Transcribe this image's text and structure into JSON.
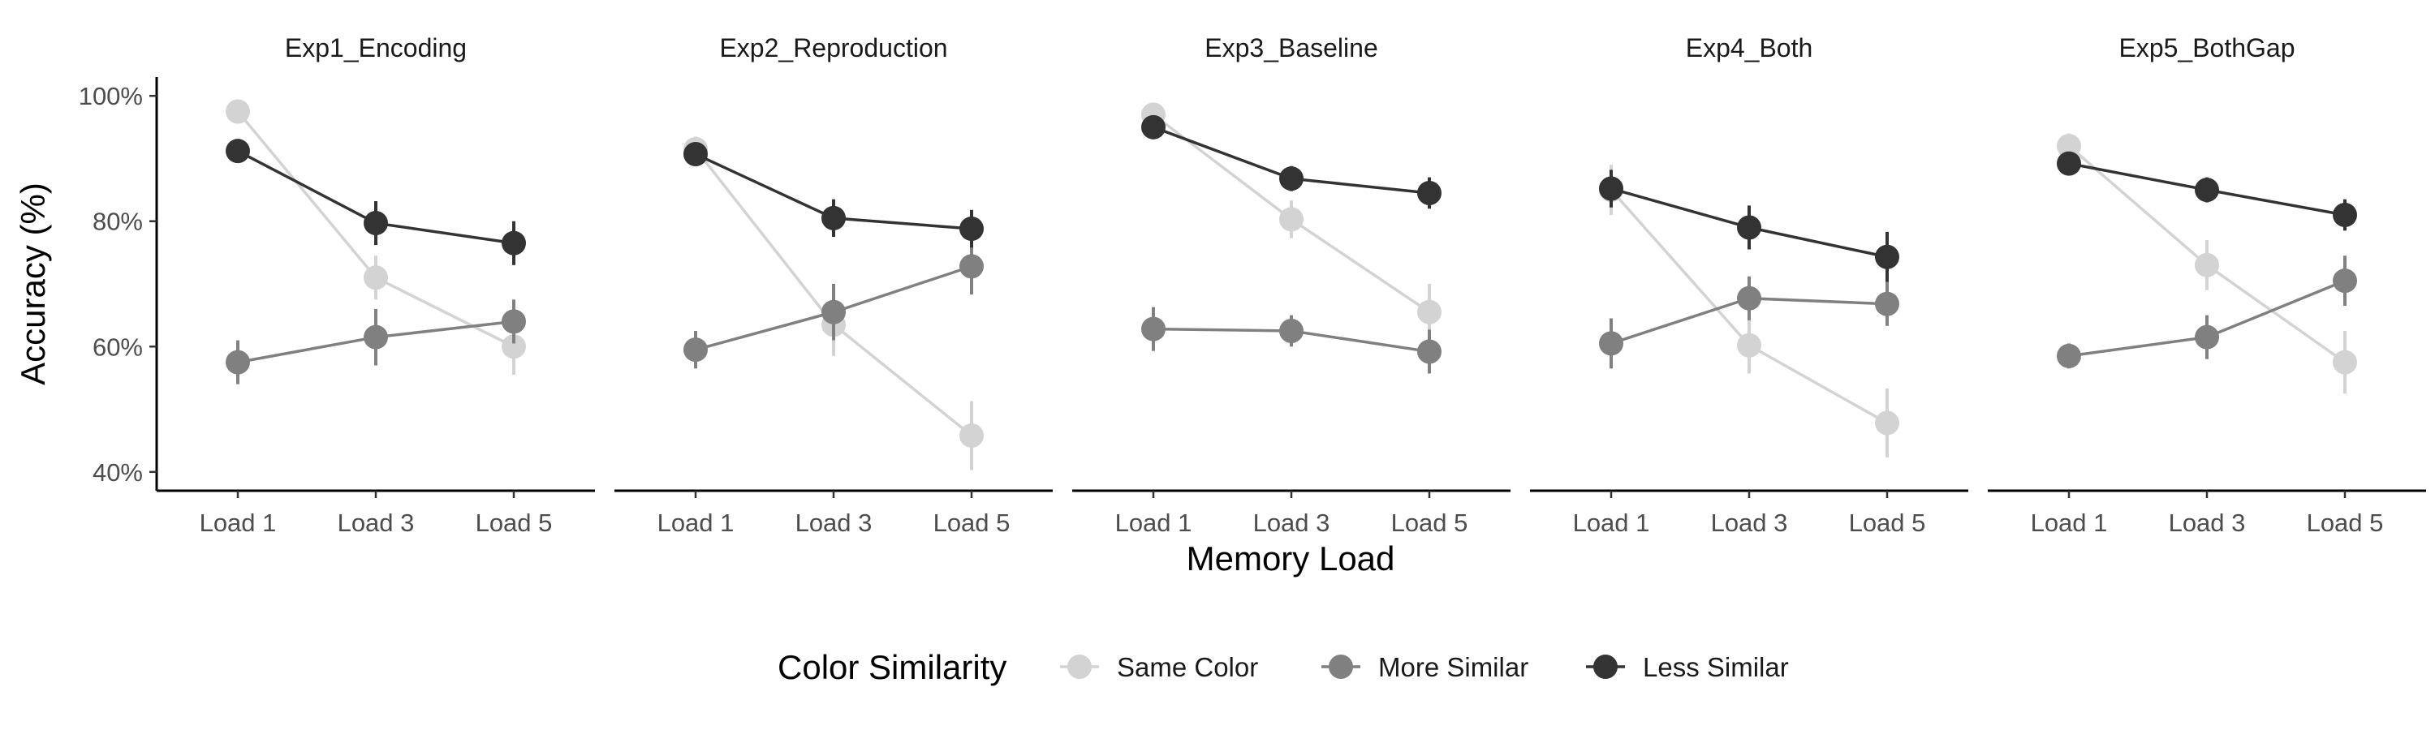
{
  "chart_data": {
    "type": "line",
    "facet_variable": "experiment",
    "x_axis_label": "Memory Load",
    "y_axis_label": "Accuracy (%)",
    "categories": [
      "Load 1",
      "Load 3",
      "Load 5"
    ],
    "y_range": [
      37,
      103
    ],
    "y_ticks": [
      40,
      60,
      80,
      100
    ],
    "y_tick_labels": [
      "40%",
      "60%",
      "80%",
      "100%"
    ],
    "grid": false,
    "error_bars": true,
    "legend": {
      "title": "Color Similarity",
      "placement": "bottom",
      "entries": [
        "Same Color",
        "More Similar",
        "Less Similar"
      ]
    },
    "series_colors": {
      "Same Color": "#d3d3d3",
      "More Similar": "#808080",
      "Less Similar": "#333333"
    },
    "panels": [
      {
        "title": "Exp1_Encoding",
        "series": [
          {
            "name": "Same Color",
            "values": [
              97.5,
              71.0,
              60.0
            ],
            "errors": [
              1.0,
              3.5,
              4.5
            ]
          },
          {
            "name": "More Similar",
            "values": [
              57.5,
              61.5,
              64.0
            ],
            "errors": [
              3.5,
              4.5,
              3.5
            ]
          },
          {
            "name": "Less Similar",
            "values": [
              91.2,
              79.7,
              76.5
            ],
            "errors": [
              1.5,
              3.5,
              3.5
            ]
          }
        ]
      },
      {
        "title": "Exp2_Reproduction",
        "series": [
          {
            "name": "Same Color",
            "values": [
              91.5,
              63.5,
              45.8
            ],
            "errors": [
              2.0,
              5.0,
              5.5
            ]
          },
          {
            "name": "More Similar",
            "values": [
              59.5,
              65.5,
              72.8
            ],
            "errors": [
              3.0,
              4.5,
              4.5
            ]
          },
          {
            "name": "Less Similar",
            "values": [
              90.7,
              80.5,
              78.8
            ],
            "errors": [
              1.5,
              3.0,
              3.0
            ]
          }
        ]
      },
      {
        "title": "Exp3_Baseline",
        "series": [
          {
            "name": "Same Color",
            "values": [
              97.0,
              80.3,
              65.5
            ],
            "errors": [
              1.0,
              3.0,
              4.5
            ]
          },
          {
            "name": "More Similar",
            "values": [
              62.8,
              62.5,
              59.2
            ],
            "errors": [
              3.5,
              2.5,
              3.5
            ]
          },
          {
            "name": "Less Similar",
            "values": [
              95.0,
              86.8,
              84.5
            ],
            "errors": [
              1.0,
              2.0,
              2.5
            ]
          }
        ]
      },
      {
        "title": "Exp4_Both",
        "series": [
          {
            "name": "Same Color",
            "values": [
              85.0,
              60.2,
              47.8
            ],
            "errors": [
              4.0,
              4.5,
              5.5
            ]
          },
          {
            "name": "More Similar",
            "values": [
              60.5,
              67.7,
              66.8
            ],
            "errors": [
              4.0,
              3.5,
              3.5
            ]
          },
          {
            "name": "Less Similar",
            "values": [
              85.2,
              79.0,
              74.3
            ],
            "errors": [
              3.0,
              3.5,
              4.0
            ]
          }
        ]
      },
      {
        "title": "Exp5_BothGap",
        "series": [
          {
            "name": "Same Color",
            "values": [
              92.0,
              73.0,
              57.5
            ],
            "errors": [
              2.0,
              4.0,
              5.0
            ]
          },
          {
            "name": "More Similar",
            "values": [
              58.5,
              61.5,
              70.5
            ],
            "errors": [
              2.0,
              3.5,
              4.0
            ]
          },
          {
            "name": "Less Similar",
            "values": [
              89.2,
              85.0,
              81.0
            ],
            "errors": [
              1.5,
              2.0,
              2.5
            ]
          }
        ]
      }
    ]
  }
}
